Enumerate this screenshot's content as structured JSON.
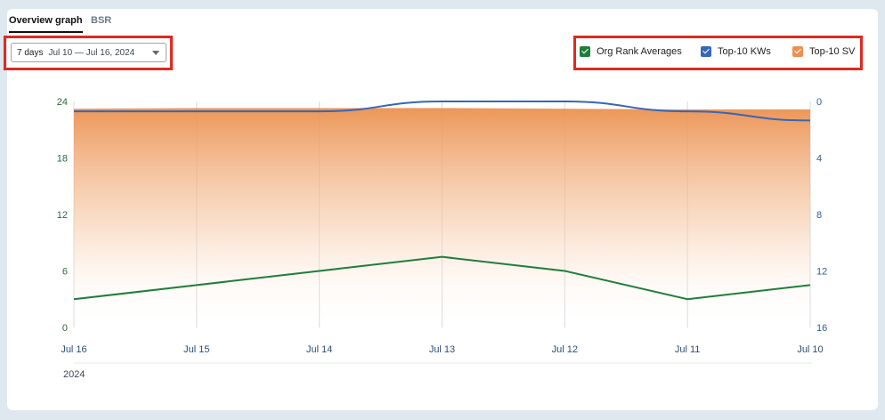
{
  "tabs": {
    "overview": "Overview graph",
    "bsr": "BSR"
  },
  "date_filter": {
    "period": "7 days",
    "range": "Jul 10 — Jul 16, 2024"
  },
  "legend": [
    {
      "label": "Org Rank Averages",
      "color": "#1e7e3a"
    },
    {
      "label": "Top-10 KWs",
      "color": "#3567b8"
    },
    {
      "label": "Top-10 SV",
      "color": "#ec9150"
    }
  ],
  "chart_data": {
    "type": "line",
    "categories": [
      "Jul 16",
      "Jul 15",
      "Jul 14",
      "Jul 13",
      "Jul 12",
      "Jul 11",
      "Jul 10"
    ],
    "year_label": "2024",
    "left_axis": {
      "ticks": [
        "24",
        "18",
        "12",
        "6",
        "0"
      ],
      "min": 0,
      "max": 24
    },
    "right_axis": {
      "ticks": [
        "0",
        "4",
        "8",
        "12",
        "16"
      ],
      "min": 0,
      "max": 16,
      "inverted": true
    },
    "grid": true,
    "series": [
      {
        "name": "Org Rank Averages",
        "axis": "left",
        "color": "#1e7e3a",
        "values": [
          3,
          4.5,
          6,
          7.5,
          6,
          3,
          4.5
        ]
      },
      {
        "name": "Top-10 KWs",
        "axis": "right",
        "color": "#3567b8",
        "values": [
          0.7,
          0.7,
          0.7,
          0,
          0,
          0.7,
          1.35
        ]
      },
      {
        "name": "Top-10 SV",
        "axis": "right",
        "type": "area",
        "color": "#ec9150",
        "values": [
          0.55,
          0.5,
          0.5,
          0.5,
          0.55,
          0.6,
          0.6
        ]
      }
    ]
  }
}
